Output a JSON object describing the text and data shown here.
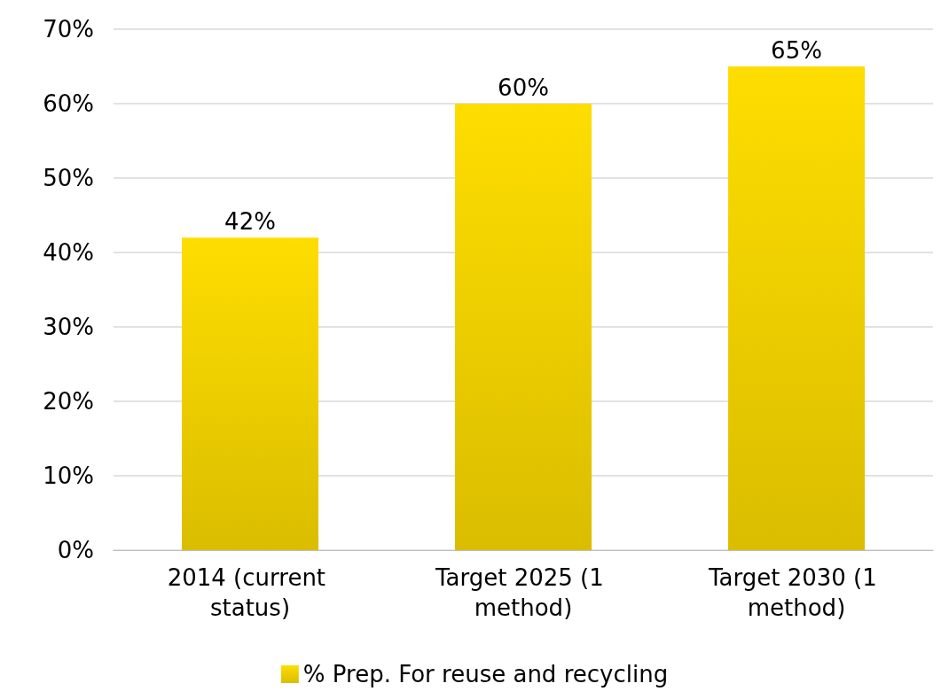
{
  "chart_data": {
    "type": "bar",
    "categories": [
      "2014 (current status)",
      "Target 2025 (1 method)",
      "Target 2030 (1 method)"
    ],
    "series": [
      {
        "name": "% Prep. For reuse and recycling",
        "color": "#f2d200",
        "values": [
          42,
          60,
          65
        ],
        "value_labels": [
          "42%",
          "60%",
          "65%"
        ]
      }
    ],
    "ylim": [
      0,
      70
    ],
    "yticks": [
      {
        "value": 0,
        "label": "0%"
      },
      {
        "value": 10,
        "label": "10%"
      },
      {
        "value": 20,
        "label": "20%"
      },
      {
        "value": 30,
        "label": "30%"
      },
      {
        "value": 40,
        "label": "40%"
      },
      {
        "value": 50,
        "label": "50%"
      },
      {
        "value": 60,
        "label": "60%"
      },
      {
        "value": 70,
        "label": "70%"
      }
    ],
    "grid": "y",
    "legend": "bottom"
  }
}
